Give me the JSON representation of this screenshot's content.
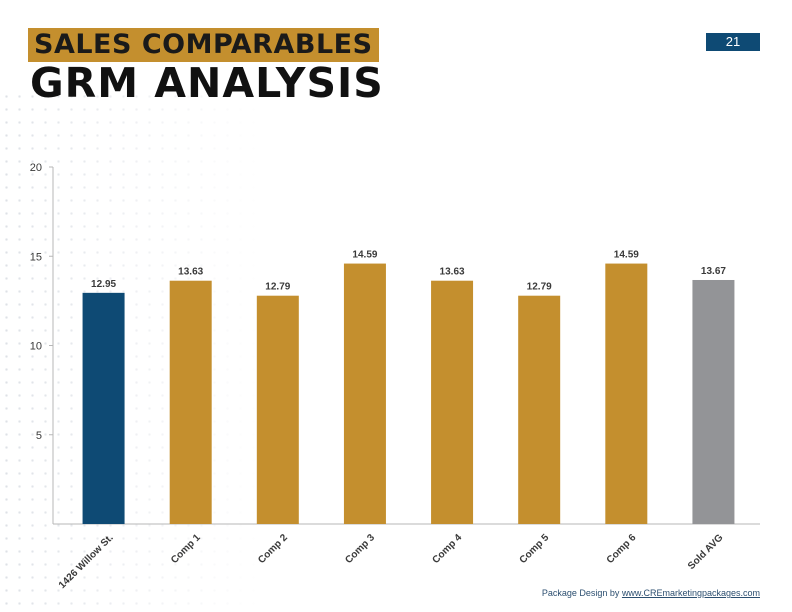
{
  "header": {
    "kicker": "SALES COMPARABLES",
    "title": "GRM ANALYSIS",
    "page_number": "21"
  },
  "footer": {
    "credit": "Package Design by ",
    "link_text": "www.CREmarketingpackages.com"
  },
  "colors": {
    "subject": "#0e4a74",
    "comp": "#c48f2e",
    "average": "#939497",
    "axis": "#b7b7b7",
    "text": "#3a3a3a"
  },
  "chart_data": {
    "type": "bar",
    "categories": [
      "1426 Willow St.",
      "Comp 1",
      "Comp 2",
      "Comp 3",
      "Comp 4",
      "Comp 5",
      "Comp 6",
      "Sold AVG"
    ],
    "values": [
      12.95,
      13.63,
      12.79,
      14.59,
      13.63,
      12.79,
      14.59,
      13.67
    ],
    "value_labels": [
      "12.95",
      "13.63",
      "12.79",
      "14.59",
      "13.63",
      "12.79",
      "14.59",
      "13.67"
    ],
    "bar_colors": [
      "#0e4a74",
      "#c48f2e",
      "#c48f2e",
      "#c48f2e",
      "#c48f2e",
      "#c48f2e",
      "#c48f2e",
      "#939497"
    ],
    "y_ticks": [
      5,
      10,
      15,
      20
    ],
    "ylim": [
      0,
      20
    ],
    "title": "",
    "xlabel": "",
    "ylabel": "",
    "grid": false,
    "legend": "none"
  }
}
